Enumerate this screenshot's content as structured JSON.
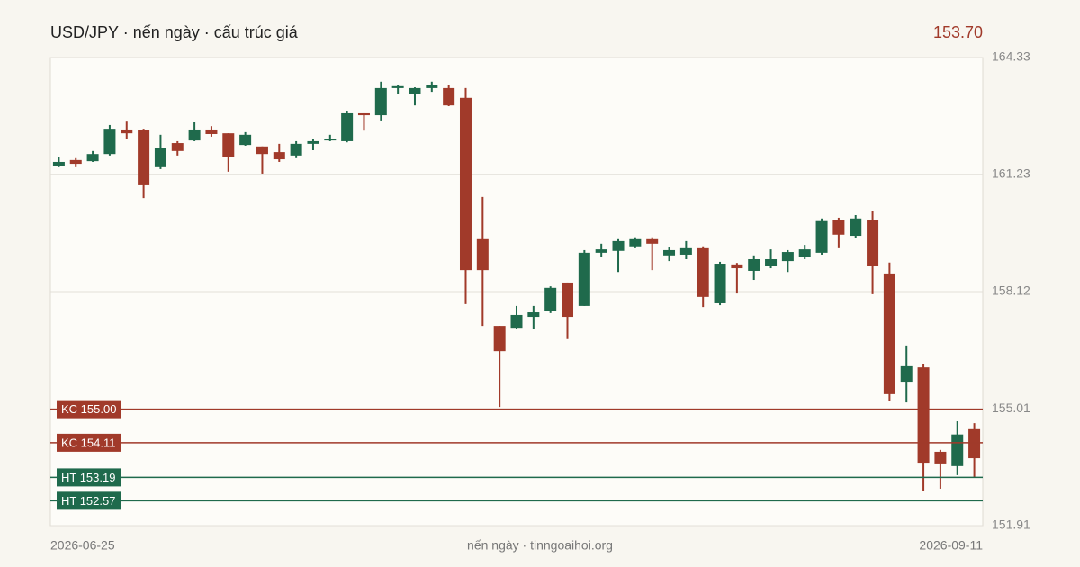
{
  "chart_data": {
    "type": "candlestick",
    "title": "USD/JPY · nến ngày · cấu trúc giá",
    "price_label": "153.70",
    "footer": "nến ngày · tinngoaihoi.org",
    "up_color": "#1f6a4c",
    "down_color": "#a13a2a",
    "categories": [
      "2026-06-25",
      null,
      null,
      null,
      null,
      null,
      null,
      null,
      null,
      null,
      null,
      null,
      null,
      null,
      null,
      null,
      null,
      null,
      null,
      null,
      null,
      null,
      null,
      null,
      null,
      null,
      null,
      null,
      null,
      null,
      null,
      null,
      null,
      null,
      null,
      null,
      null,
      null,
      null,
      null,
      null,
      null,
      null,
      null,
      null,
      null,
      null,
      null,
      null,
      null,
      null,
      null,
      null,
      null,
      "2026-09-11"
    ],
    "open": [
      161.46,
      161.61,
      161.58,
      161.77,
      162.42,
      162.4,
      161.42,
      162.06,
      162.13,
      162.42,
      162.32,
      162.01,
      161.97,
      161.82,
      161.73,
      162.04,
      162.13,
      162.11,
      162.85,
      162.8,
      163.52,
      163.37,
      163.52,
      163.52,
      163.26,
      159.51,
      157.21,
      157.16,
      157.45,
      157.6,
      158.36,
      157.74,
      159.15,
      159.2,
      159.32,
      159.51,
      159.08,
      159.1,
      159.27,
      157.81,
      158.84,
      158.67,
      158.79,
      158.93,
      159.03,
      159.15,
      160.03,
      159.6,
      160.01,
      158.6,
      155.73,
      156.11,
      153.87,
      153.49,
      154.47
    ],
    "high": [
      161.7,
      161.66,
      161.85,
      162.54,
      162.63,
      162.44,
      162.28,
      162.11,
      162.61,
      162.51,
      162.32,
      162.35,
      161.97,
      162.04,
      162.11,
      162.18,
      162.28,
      162.92,
      162.85,
      163.69,
      163.59,
      163.54,
      163.69,
      163.59,
      163.52,
      160.63,
      157.21,
      157.74,
      157.74,
      158.26,
      158.36,
      159.22,
      159.39,
      159.51,
      159.56,
      159.56,
      159.29,
      159.46,
      159.32,
      158.91,
      158.88,
      159.08,
      159.24,
      159.22,
      159.36,
      160.06,
      160.08,
      160.15,
      160.25,
      158.89,
      156.69,
      156.21,
      153.92,
      154.68,
      154.63
    ],
    "low": [
      161.42,
      161.42,
      161.56,
      161.73,
      162.16,
      160.6,
      161.37,
      161.73,
      162.11,
      162.23,
      161.3,
      161.99,
      161.25,
      161.56,
      161.66,
      161.87,
      162.11,
      162.08,
      162.39,
      162.66,
      163.37,
      163.06,
      163.42,
      163.04,
      157.79,
      157.21,
      155.06,
      157.12,
      157.14,
      157.55,
      156.86,
      157.74,
      159.03,
      158.64,
      159.27,
      158.69,
      158.93,
      158.98,
      157.71,
      157.76,
      158.07,
      158.43,
      158.74,
      158.64,
      158.98,
      159.1,
      159.27,
      159.53,
      158.05,
      155.21,
      155.18,
      152.82,
      152.89,
      153.25,
      153.18
    ],
    "close": [
      161.56,
      161.51,
      161.77,
      162.44,
      162.32,
      160.94,
      161.92,
      161.85,
      162.42,
      162.3,
      161.7,
      162.28,
      161.77,
      161.63,
      162.04,
      162.11,
      162.18,
      162.85,
      162.8,
      163.52,
      163.57,
      163.52,
      163.61,
      163.06,
      158.69,
      158.69,
      156.54,
      157.5,
      157.57,
      158.22,
      157.45,
      159.15,
      159.24,
      159.46,
      159.51,
      159.39,
      159.22,
      159.27,
      157.98,
      158.86,
      158.74,
      158.98,
      158.98,
      159.17,
      159.24,
      159.99,
      159.63,
      160.06,
      158.79,
      155.4,
      156.14,
      153.58,
      153.56,
      154.33,
      153.7
    ],
    "ylim": [
      151.91,
      164.33
    ],
    "yticks": [
      151.91,
      155.01,
      158.12,
      161.23,
      164.33
    ],
    "grid": true,
    "levels": [
      {
        "label": "KC 155.00",
        "value": 155.0,
        "color": "#a13a2a"
      },
      {
        "label": "KC 154.11",
        "value": 154.11,
        "color": "#a13a2a"
      },
      {
        "label": "HT 153.19",
        "value": 153.19,
        "color": "#1f6a4c"
      },
      {
        "label": "HT 152.57",
        "value": 152.57,
        "color": "#1f6a4c"
      }
    ]
  }
}
